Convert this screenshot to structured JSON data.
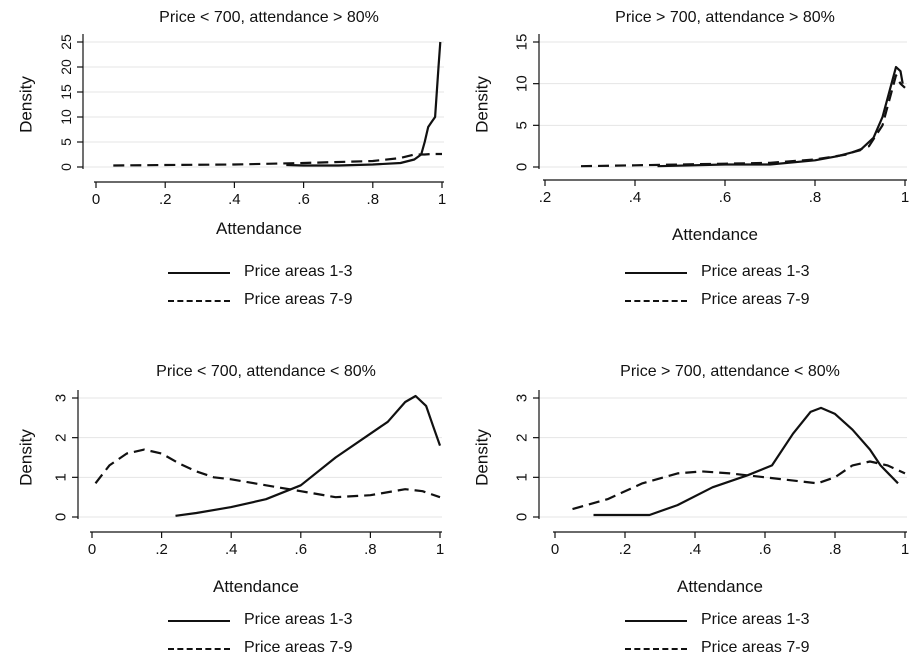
{
  "chart_data": [
    {
      "type": "line",
      "title": "Price < 700, attendance > 80%",
      "xlabel": "Attendance",
      "ylabel": "Density",
      "xlim": [
        0,
        1
      ],
      "ylim": [
        0,
        25
      ],
      "x_ticks": [
        0,
        0.2,
        0.4,
        0.6,
        0.8,
        1
      ],
      "x_tick_labels": [
        "0",
        ".2",
        ".4",
        ".6",
        ".8",
        "1"
      ],
      "y_ticks": [
        0,
        5,
        10,
        15,
        20,
        25
      ],
      "y_tick_labels": [
        "0",
        "5",
        "10",
        "15",
        "20",
        "25"
      ],
      "grid": true,
      "legend_position": "bottom",
      "series": [
        {
          "name": "Price areas 1-3",
          "style": "solid",
          "points": [
            [
              0.55,
              0.4
            ],
            [
              0.6,
              0.3
            ],
            [
              0.7,
              0.3
            ],
            [
              0.8,
              0.5
            ],
            [
              0.88,
              0.8
            ],
            [
              0.92,
              1.5
            ],
            [
              0.94,
              2.5
            ],
            [
              0.95,
              5
            ],
            [
              0.96,
              8
            ],
            [
              0.97,
              9
            ],
            [
              0.98,
              10
            ],
            [
              0.985,
              15
            ],
            [
              0.99,
              20
            ],
            [
              0.995,
              25
            ]
          ]
        },
        {
          "name": "Price areas 7-9",
          "style": "dashed",
          "points": [
            [
              0.05,
              0.3
            ],
            [
              0.2,
              0.4
            ],
            [
              0.4,
              0.5
            ],
            [
              0.6,
              0.8
            ],
            [
              0.8,
              1.2
            ],
            [
              0.88,
              1.8
            ],
            [
              0.92,
              2.5
            ],
            [
              0.95,
              2.5
            ],
            [
              0.97,
              2.6
            ],
            [
              1.0,
              2.6
            ]
          ]
        }
      ]
    },
    {
      "type": "line",
      "title": "Price > 700, attendance > 80%",
      "xlabel": "Attendance",
      "ylabel": "Density",
      "xlim": [
        0.2,
        1
      ],
      "ylim": [
        0,
        15
      ],
      "x_ticks": [
        0.2,
        0.4,
        0.6,
        0.8,
        1
      ],
      "x_tick_labels": [
        ".2",
        ".4",
        ".6",
        ".8",
        "1"
      ],
      "y_ticks": [
        0,
        5,
        10,
        15
      ],
      "y_tick_labels": [
        "0",
        "5",
        "10",
        "15"
      ],
      "grid": true,
      "legend_position": "bottom",
      "series": [
        {
          "name": "Price areas 1-3",
          "style": "solid",
          "points": [
            [
              0.45,
              0.1
            ],
            [
              0.6,
              0.3
            ],
            [
              0.7,
              0.3
            ],
            [
              0.8,
              0.8
            ],
            [
              0.85,
              1.3
            ],
            [
              0.9,
              2.0
            ],
            [
              0.93,
              3.5
            ],
            [
              0.95,
              6
            ],
            [
              0.97,
              10
            ],
            [
              0.98,
              12
            ],
            [
              0.99,
              11.5
            ],
            [
              0.995,
              10
            ]
          ]
        },
        {
          "name": "Price areas 7-9",
          "style": "dashed",
          "points": [
            [
              0.28,
              0.1
            ],
            [
              0.4,
              0.2
            ],
            [
              0.5,
              0.3
            ],
            [
              0.6,
              0.4
            ],
            [
              0.7,
              0.5
            ],
            [
              0.8,
              0.9
            ],
            [
              0.87,
              1.5
            ],
            [
              0.92,
              2.5
            ],
            [
              0.95,
              5
            ],
            [
              0.97,
              9
            ],
            [
              0.98,
              11
            ],
            [
              0.99,
              10
            ],
            [
              1.0,
              9.5
            ]
          ]
        }
      ]
    },
    {
      "type": "line",
      "title": "Price < 700, attendance < 80%",
      "xlabel": "Attendance",
      "ylabel": "Density",
      "xlim": [
        0,
        1
      ],
      "ylim": [
        0,
        3
      ],
      "x_ticks": [
        0,
        0.2,
        0.4,
        0.6,
        0.8,
        1
      ],
      "x_tick_labels": [
        "0",
        ".2",
        ".4",
        ".6",
        ".8",
        "1"
      ],
      "y_ticks": [
        0,
        1,
        2,
        3
      ],
      "y_tick_labels": [
        "0",
        "1",
        "2",
        "3"
      ],
      "grid": true,
      "legend_position": "bottom",
      "series": [
        {
          "name": "Price areas 1-3",
          "style": "solid",
          "points": [
            [
              0.24,
              0.03
            ],
            [
              0.3,
              0.1
            ],
            [
              0.4,
              0.25
            ],
            [
              0.5,
              0.45
            ],
            [
              0.6,
              0.8
            ],
            [
              0.7,
              1.5
            ],
            [
              0.8,
              2.1
            ],
            [
              0.85,
              2.4
            ],
            [
              0.9,
              2.9
            ],
            [
              0.93,
              3.05
            ],
            [
              0.96,
              2.8
            ],
            [
              0.98,
              2.3
            ],
            [
              1.0,
              1.8
            ]
          ]
        },
        {
          "name": "Price areas 7-9",
          "style": "dashed",
          "points": [
            [
              0.01,
              0.85
            ],
            [
              0.05,
              1.3
            ],
            [
              0.1,
              1.6
            ],
            [
              0.15,
              1.7
            ],
            [
              0.2,
              1.6
            ],
            [
              0.25,
              1.35
            ],
            [
              0.3,
              1.15
            ],
            [
              0.35,
              1.0
            ],
            [
              0.4,
              0.95
            ],
            [
              0.5,
              0.8
            ],
            [
              0.6,
              0.65
            ],
            [
              0.7,
              0.5
            ],
            [
              0.8,
              0.55
            ],
            [
              0.9,
              0.7
            ],
            [
              0.95,
              0.65
            ],
            [
              1.0,
              0.5
            ]
          ]
        }
      ]
    },
    {
      "type": "line",
      "title": "Price > 700, attendance < 80%",
      "xlabel": "Attendance",
      "ylabel": "Density",
      "xlim": [
        0,
        1
      ],
      "ylim": [
        0,
        3
      ],
      "x_ticks": [
        0,
        0.2,
        0.4,
        0.6,
        0.8,
        1
      ],
      "x_tick_labels": [
        "0",
        ".2",
        ".4",
        ".6",
        ".8",
        "1"
      ],
      "y_ticks": [
        0,
        1,
        2,
        3
      ],
      "y_tick_labels": [
        "0",
        "1",
        "2",
        "3"
      ],
      "grid": true,
      "legend_position": "bottom",
      "series": [
        {
          "name": "Price areas 1-3",
          "style": "solid",
          "points": [
            [
              0.11,
              0.05
            ],
            [
              0.2,
              0.05
            ],
            [
              0.27,
              0.05
            ],
            [
              0.35,
              0.3
            ],
            [
              0.45,
              0.75
            ],
            [
              0.55,
              1.05
            ],
            [
              0.62,
              1.3
            ],
            [
              0.68,
              2.1
            ],
            [
              0.73,
              2.65
            ],
            [
              0.76,
              2.75
            ],
            [
              0.8,
              2.6
            ],
            [
              0.85,
              2.2
            ],
            [
              0.9,
              1.7
            ],
            [
              0.93,
              1.3
            ],
            [
              0.98,
              0.85
            ]
          ]
        },
        {
          "name": "Price areas 7-9",
          "style": "dashed",
          "points": [
            [
              0.05,
              0.2
            ],
            [
              0.15,
              0.45
            ],
            [
              0.25,
              0.85
            ],
            [
              0.35,
              1.1
            ],
            [
              0.42,
              1.15
            ],
            [
              0.5,
              1.1
            ],
            [
              0.6,
              1.0
            ],
            [
              0.7,
              0.9
            ],
            [
              0.75,
              0.85
            ],
            [
              0.8,
              1.0
            ],
            [
              0.85,
              1.3
            ],
            [
              0.9,
              1.4
            ],
            [
              0.95,
              1.3
            ],
            [
              1.0,
              1.1
            ]
          ]
        }
      ]
    }
  ]
}
